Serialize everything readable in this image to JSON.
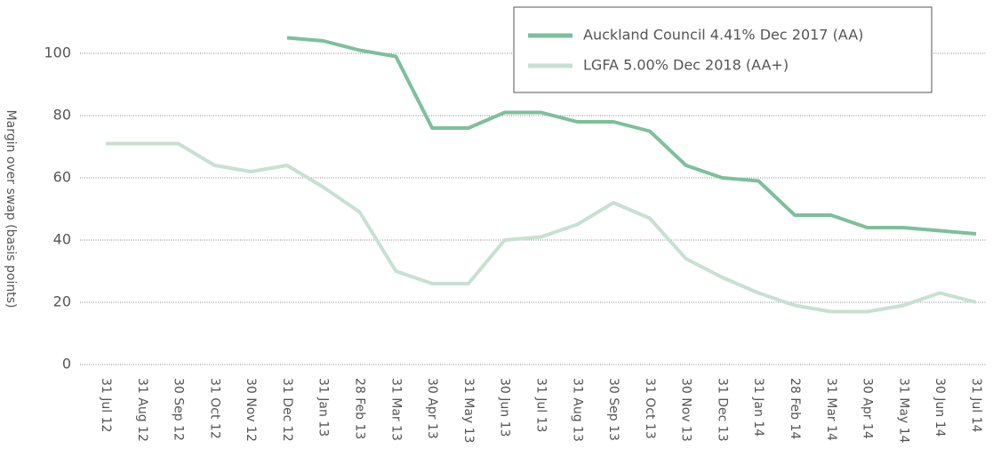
{
  "chart_data": {
    "type": "line",
    "y_label": "Margin over swap (basis points)",
    "categories": [
      "31 Jul 12",
      "31 Aug 12",
      "30 Sep 12",
      "31 Oct 12",
      "30 Nov 12",
      "31 Dec 12",
      "31 Jan 13",
      "28 Feb 13",
      "31 Mar 13",
      "30 Apr 13",
      "31 May 13",
      "30 Jun 13",
      "31 Jul 13",
      "31 Aug 13",
      "30 Sep 13",
      "31 Oct 13",
      "30 Nov 13",
      "31 Dec 13",
      "31 Jan 14",
      "28 Feb 14",
      "31 Mar 14",
      "30 Apr 14",
      "31 May 14",
      "30 Jun 14",
      "31 Jul 14"
    ],
    "series": [
      {
        "name": "Auckland Council 4.41% Dec 2017 (AA)",
        "color": "#7dbf9c",
        "values": [
          null,
          null,
          null,
          null,
          null,
          105,
          104,
          101,
          99,
          76,
          76,
          81,
          81,
          78,
          78,
          75,
          64,
          60,
          59,
          48,
          48,
          44,
          44,
          43,
          42
        ]
      },
      {
        "name": "LGFA 5.00% Dec 2018 (AA+)",
        "color": "#c8e0d2",
        "values": [
          71,
          71,
          71,
          64,
          62,
          64,
          57,
          49,
          30,
          26,
          26,
          40,
          41,
          45,
          52,
          47,
          34,
          28,
          23,
          19,
          17,
          17,
          19,
          23,
          20
        ]
      }
    ],
    "ylim": [
      0,
      110
    ],
    "yticks": [
      0,
      20,
      40,
      60,
      80,
      100
    ],
    "grid": true,
    "legend": "upper right"
  }
}
